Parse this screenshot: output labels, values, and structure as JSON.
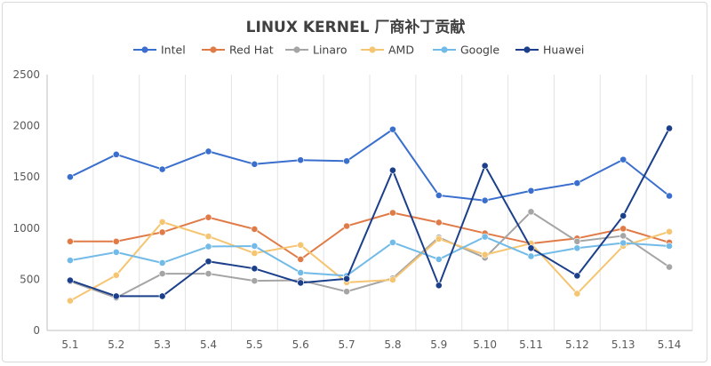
{
  "chart_data": {
    "type": "line",
    "title": "LINUX KERNEL 厂商补丁贡献",
    "xlabel": "",
    "ylabel": "",
    "categories": [
      "5.1",
      "5.2",
      "5.3",
      "5.4",
      "5.5",
      "5.6",
      "5.7",
      "5.8",
      "5.9",
      "5.10",
      "5.11",
      "5.12",
      "5.13",
      "5.14"
    ],
    "ylim": [
      0,
      2500
    ],
    "yticks": [
      0,
      500,
      1000,
      1500,
      2000,
      2500
    ],
    "grid": "vertical",
    "legend_position": "top",
    "series": [
      {
        "name": "Intel",
        "color": "#3a6fce",
        "values": [
          1500,
          1720,
          1575,
          1750,
          1625,
          1665,
          1655,
          1965,
          1320,
          1270,
          1365,
          1440,
          1670,
          1315
        ]
      },
      {
        "name": "Red Hat",
        "color": "#e07b47",
        "values": [
          870,
          870,
          960,
          1105,
          990,
          695,
          1020,
          1150,
          1055,
          950,
          850,
          900,
          995,
          860
        ]
      },
      {
        "name": "Linaro",
        "color": "#a5a5a5",
        "values": [
          480,
          320,
          555,
          555,
          485,
          490,
          380,
          510,
          910,
          710,
          1160,
          870,
          925,
          620
        ]
      },
      {
        "name": "AMD",
        "color": "#f5c571",
        "values": [
          290,
          540,
          1060,
          920,
          755,
          835,
          470,
          495,
          895,
          740,
          850,
          360,
          825,
          965
        ]
      },
      {
        "name": "Google",
        "color": "#72bbe8",
        "values": [
          685,
          765,
          660,
          820,
          825,
          565,
          535,
          860,
          695,
          915,
          725,
          805,
          855,
          825
        ]
      },
      {
        "name": "Huawei",
        "color": "#1b3f8b",
        "values": [
          490,
          335,
          335,
          675,
          605,
          465,
          505,
          1565,
          440,
          1610,
          805,
          535,
          1120,
          1975
        ]
      }
    ]
  }
}
